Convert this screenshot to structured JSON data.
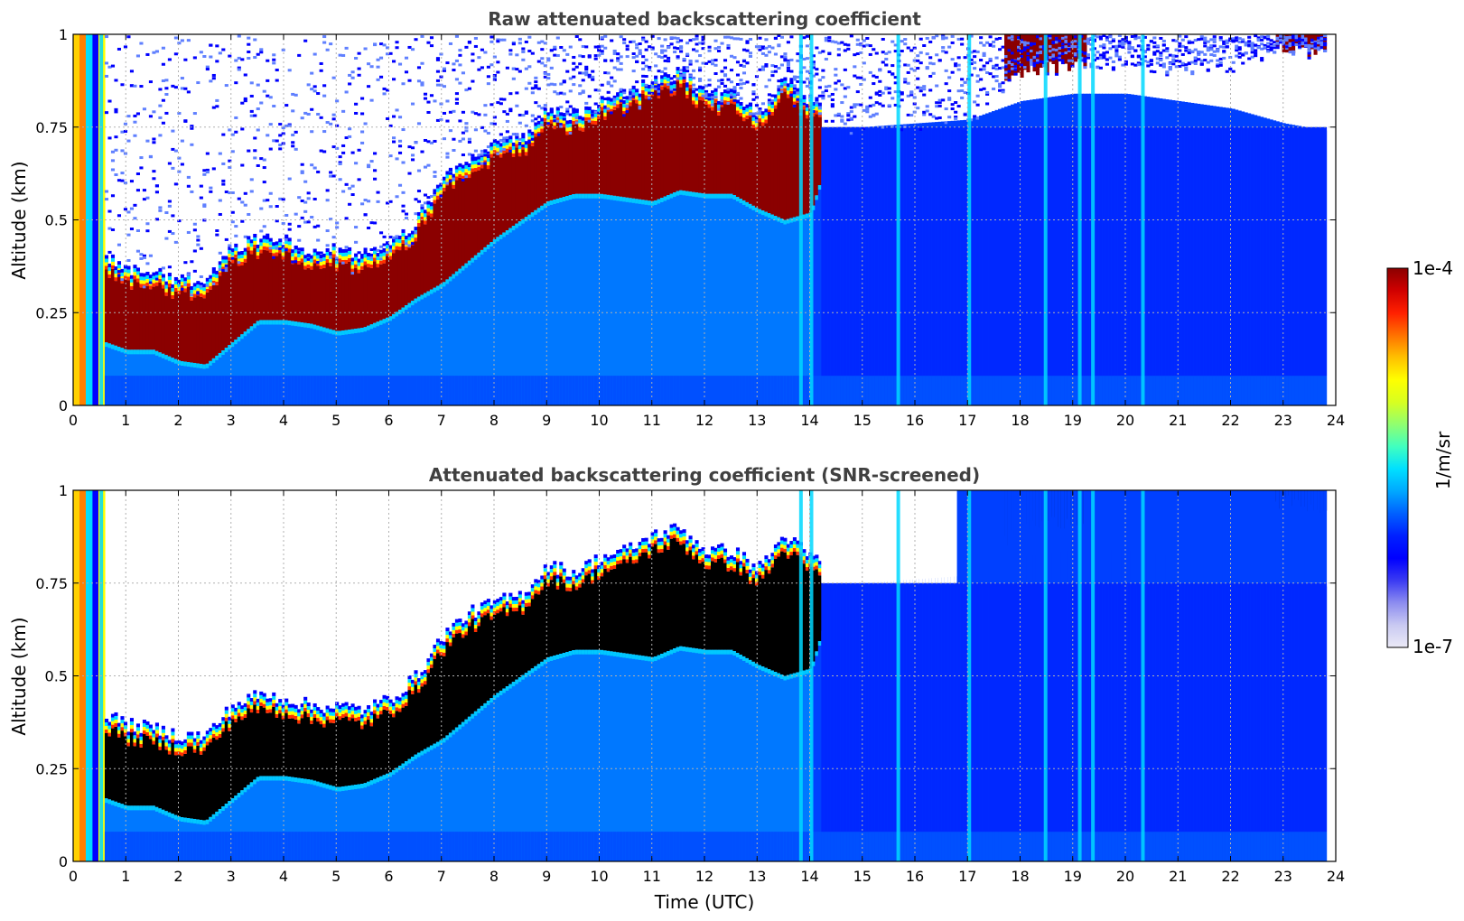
{
  "chart_data": [
    {
      "type": "heatmap",
      "title": "Raw attenuated backscattering coefficient",
      "xlabel": "",
      "ylabel": "Altitude (km)",
      "xlim": [
        0,
        24
      ],
      "ylim": [
        0,
        1
      ],
      "x_ticks": [
        "0",
        "1",
        "2",
        "3",
        "4",
        "5",
        "6",
        "7",
        "8",
        "9",
        "10",
        "11",
        "12",
        "13",
        "14",
        "15",
        "16",
        "17",
        "18",
        "19",
        "20",
        "21",
        "22",
        "23",
        "24"
      ],
      "y_ticks": [
        "0",
        "0.25",
        "0.5",
        "0.75",
        "1"
      ],
      "grid": true,
      "screened": false,
      "layer_top_km": [
        [
          0.6,
          0.36
        ],
        [
          1,
          0.33
        ],
        [
          1.5,
          0.32
        ],
        [
          2,
          0.3
        ],
        [
          2.5,
          0.3
        ],
        [
          3,
          0.38
        ],
        [
          3.5,
          0.41
        ],
        [
          4,
          0.4
        ],
        [
          4.5,
          0.38
        ],
        [
          5,
          0.38
        ],
        [
          5.5,
          0.37
        ],
        [
          6,
          0.4
        ],
        [
          6.5,
          0.46
        ],
        [
          7,
          0.57
        ],
        [
          7.5,
          0.63
        ],
        [
          8,
          0.66
        ],
        [
          8.5,
          0.68
        ],
        [
          9,
          0.76
        ],
        [
          9.5,
          0.74
        ],
        [
          10,
          0.78
        ],
        [
          10.5,
          0.8
        ],
        [
          11,
          0.84
        ],
        [
          11.5,
          0.86
        ],
        [
          12,
          0.8
        ],
        [
          12.5,
          0.8
        ],
        [
          13,
          0.75
        ],
        [
          13.5,
          0.84
        ],
        [
          14,
          0.78
        ],
        [
          14.5,
          0.75
        ],
        [
          15,
          0.75
        ],
        [
          16,
          0.75
        ],
        [
          17,
          0.76
        ],
        [
          18,
          0.9
        ],
        [
          19,
          0.92
        ],
        [
          20,
          0.92
        ],
        [
          21,
          0.9
        ],
        [
          22,
          0.92
        ],
        [
          23,
          0.97
        ],
        [
          23.8,
          0.95
        ]
      ],
      "layer_base_km": [
        [
          0.6,
          0.17
        ],
        [
          1,
          0.15
        ],
        [
          1.5,
          0.15
        ],
        [
          2,
          0.12
        ],
        [
          2.5,
          0.11
        ],
        [
          3,
          0.17
        ],
        [
          3.5,
          0.23
        ],
        [
          4,
          0.23
        ],
        [
          4.5,
          0.22
        ],
        [
          5,
          0.2
        ],
        [
          5.5,
          0.21
        ],
        [
          6,
          0.24
        ],
        [
          6.5,
          0.29
        ],
        [
          7,
          0.33
        ],
        [
          7.5,
          0.39
        ],
        [
          8,
          0.45
        ],
        [
          8.5,
          0.5
        ],
        [
          9,
          0.55
        ],
        [
          9.5,
          0.57
        ],
        [
          10,
          0.57
        ],
        [
          10.5,
          0.56
        ],
        [
          11,
          0.55
        ],
        [
          11.5,
          0.58
        ],
        [
          12,
          0.57
        ],
        [
          12.5,
          0.57
        ],
        [
          13,
          0.53
        ],
        [
          13.5,
          0.5
        ],
        [
          14,
          0.52
        ],
        [
          14.5,
          0.75
        ],
        [
          15,
          0.75
        ],
        [
          16,
          0.76
        ],
        [
          17,
          0.77
        ],
        [
          18,
          0.82
        ],
        [
          19,
          0.84
        ],
        [
          20,
          0.84
        ],
        [
          21,
          0.82
        ],
        [
          22,
          0.8
        ],
        [
          23,
          0.76
        ],
        [
          23.8,
          0.74
        ]
      ],
      "vertical_streaks_utc": [
        0.3,
        0.5,
        13.8,
        14.0,
        15.65,
        17.0,
        18.45,
        19.1,
        19.35,
        20.3
      ]
    },
    {
      "type": "heatmap",
      "title": "Attenuated backscattering coefficient (SNR-screened)",
      "xlabel": "Time (UTC)",
      "ylabel": "Altitude (km)",
      "xlim": [
        0,
        24
      ],
      "ylim": [
        0,
        1
      ],
      "x_ticks": [
        "0",
        "1",
        "2",
        "3",
        "4",
        "5",
        "6",
        "7",
        "8",
        "9",
        "10",
        "11",
        "12",
        "13",
        "14",
        "15",
        "16",
        "17",
        "18",
        "19",
        "20",
        "21",
        "22",
        "23",
        "24"
      ],
      "y_ticks": [
        "0",
        "0.25",
        "0.5",
        "0.75",
        "1"
      ],
      "grid": true,
      "screened": true
    }
  ],
  "colorbar": {
    "label": "1/m/sr",
    "max_label": "1e-4",
    "min_label": "1e-7",
    "colors": [
      "#ebeaf7",
      "#c9c9f2",
      "#8c8cf0",
      "#3b3bf2",
      "#0000ff",
      "#0020ff",
      "#0060ff",
      "#00a8ff",
      "#00e0ff",
      "#40ffc0",
      "#90ff70",
      "#d8ff20",
      "#ffff00",
      "#ffc000",
      "#ff7000",
      "#ff2000",
      "#d00000",
      "#8b0000"
    ]
  }
}
